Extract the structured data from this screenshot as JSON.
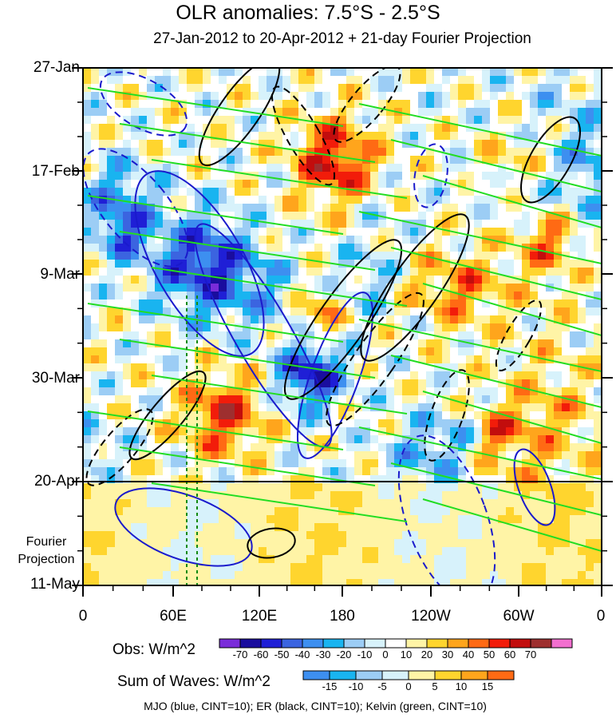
{
  "title": "OLR anomalies: 7.5°S - 2.5°S",
  "subtitle": "27-Jan-2012 to 20-Apr-2012 + 21-day Fourier Projection",
  "projection_label_line1": "Fourier",
  "projection_label_line2": "Projection",
  "obs_label": "Obs: W/m^2",
  "waves_label": "Sum of Waves: W/m^2",
  "footer": "MJO (blue, CINT=10); ER (black, CINT=10); Kelvin (green, CINT=10)",
  "colors": {
    "mjo": "#1a1acc",
    "er": "#000000",
    "kelvin": "#22dd22",
    "projection_divider": "#000000",
    "dotted_marker": "#138a13"
  },
  "chart_data": {
    "type": "heatmap",
    "x_axis": {
      "ticks": [
        "0",
        "60E",
        "120E",
        "180",
        "120W",
        "60W",
        "0"
      ],
      "range_deg_east": [
        0,
        360
      ]
    },
    "y_axis": {
      "ticks": [
        "27-Jan",
        "17-Feb",
        "9-Mar",
        "30-Mar",
        "20-Apr",
        "11-May"
      ],
      "range": [
        "27-Jan-2012",
        "11-May-2012"
      ],
      "reversed": true
    },
    "projection_start": "20-Apr",
    "obs_colorbar": {
      "labels": [
        "-70",
        "-60",
        "-50",
        "-40",
        "-30",
        "-20",
        "-10",
        "0",
        "10",
        "20",
        "30",
        "40",
        "50",
        "60",
        "70"
      ],
      "colors": [
        "#7a2cd9",
        "#1a0d9e",
        "#1f1fd6",
        "#3b64e0",
        "#3d8ff0",
        "#19b4f0",
        "#9ccdf5",
        "#d7f2fb",
        "#ffffff",
        "#fff4a6",
        "#ffd52e",
        "#ffa51c",
        "#ff6a14",
        "#f21c0a",
        "#c20d0d",
        "#9e2f2f",
        "#f26fcf"
      ]
    },
    "waves_colorbar": {
      "labels": [
        "-15",
        "-10",
        "-5",
        "0",
        "5",
        "10",
        "15"
      ],
      "colors": [
        "#3d8ff0",
        "#19b4f0",
        "#9ccdf5",
        "#d7f2fb",
        "#fff4a6",
        "#ffd52e",
        "#ffa51c",
        "#ff6a14"
      ]
    },
    "contour_series": [
      {
        "name": "MJO",
        "cint": 10
      },
      {
        "name": "ER",
        "cint": 10
      },
      {
        "name": "Kelvin",
        "cint": 10
      }
    ]
  }
}
